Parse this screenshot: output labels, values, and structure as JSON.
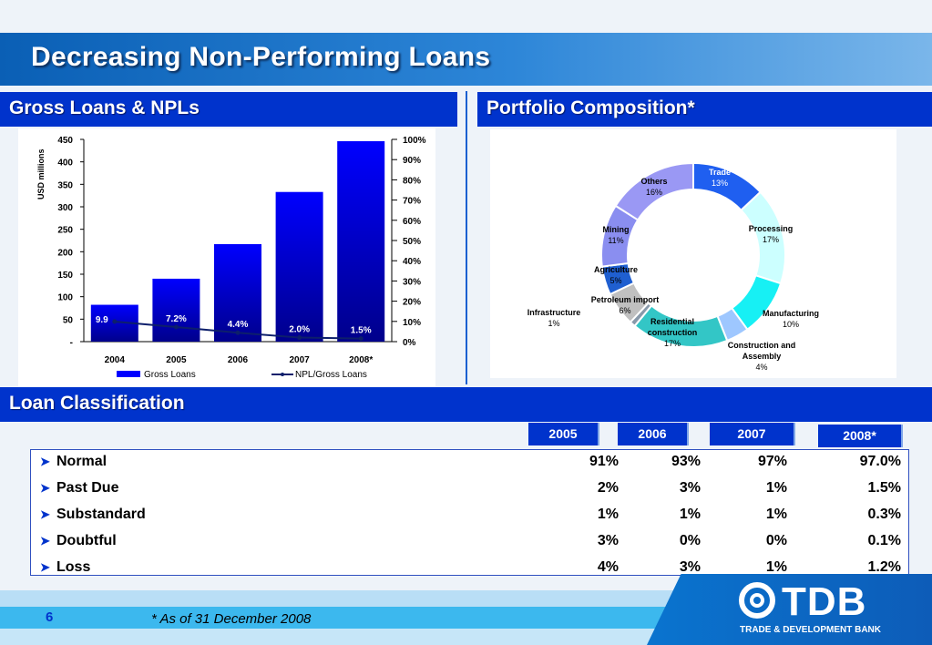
{
  "title": "Decreasing Non-Performing Loans",
  "sections": {
    "gross_loans": "Gross Loans & NPLs",
    "portfolio": "Portfolio Composition*",
    "loan_classification": "Loan Classification"
  },
  "chart_data": [
    {
      "type": "bar",
      "title": "Gross Loans & NPLs",
      "ylabel": "USD millions",
      "categories": [
        "2004",
        "2005",
        "2006",
        "2007",
        "2008*"
      ],
      "ylim": [
        0,
        450
      ],
      "y_ticks": [
        "-",
        "50",
        "100",
        "150",
        "200",
        "250",
        "300",
        "350",
        "400",
        "450"
      ],
      "y2lim": [
        0,
        100
      ],
      "y2_ticks": [
        "0%",
        "10%",
        "20%",
        "30%",
        "40%",
        "50%",
        "60%",
        "70%",
        "80%",
        "90%",
        "100%"
      ],
      "series": [
        {
          "name": "Gross Loans",
          "type": "bar",
          "axis": "left",
          "values": [
            82,
            140,
            217,
            333,
            446
          ]
        },
        {
          "name": "NPL/Gross Loans",
          "type": "line",
          "axis": "right",
          "values": [
            9.9,
            7.2,
            4.4,
            2.0,
            1.5
          ],
          "labels": [
            "9.9",
            "7.2%",
            "4.4%",
            "2.0%",
            "1.5%"
          ]
        }
      ],
      "legend": "bottom",
      "colors": {
        "bar_top": "#0000ff",
        "bar_bottom": "#00008b",
        "line": "#0d1f6b"
      }
    },
    {
      "type": "pie",
      "subtype": "donut",
      "title": "Portfolio Composition*",
      "slices": [
        {
          "label": "Trade",
          "value": 13,
          "value_label": "13%",
          "color": "#1f5ff0"
        },
        {
          "label": "Processing",
          "value": 17,
          "value_label": "17%",
          "color": "#ccffff"
        },
        {
          "label": "Manufacturing",
          "value": 10,
          "value_label": "10%",
          "color": "#17f0f4"
        },
        {
          "label": "Construction and Assembly",
          "value": 4,
          "value_label": "4%",
          "color": "#9ec7ff"
        },
        {
          "label": "Residential construction",
          "value": 17,
          "value_label": "17%",
          "color": "#33c6c6"
        },
        {
          "label": "Infrastructure",
          "value": 1,
          "value_label": "1%",
          "color": "#8899aa"
        },
        {
          "label": "Petroleum import",
          "value": 6,
          "value_label": "6%",
          "color": "#c0c0c0"
        },
        {
          "label": "Agriculture",
          "value": 5,
          "value_label": "5%",
          "color": "#1f5fd0"
        },
        {
          "label": "Mining",
          "value": 11,
          "value_label": "11%",
          "color": "#8a8ef0"
        },
        {
          "label": "Others",
          "value": 16,
          "value_label": "16%",
          "color": "#9a98f4"
        }
      ]
    },
    {
      "type": "table",
      "title": "Loan Classification",
      "columns": [
        "2005",
        "2006",
        "2007",
        "2008*"
      ],
      "rows": [
        {
          "label": "Normal",
          "values": [
            "91%",
            "93%",
            "97%",
            "97.0%"
          ]
        },
        {
          "label": "Past Due",
          "values": [
            "2%",
            "3%",
            "1%",
            "1.5%"
          ]
        },
        {
          "label": "Substandard",
          "values": [
            "1%",
            "1%",
            "1%",
            "0.3%"
          ]
        },
        {
          "label": "Doubtful",
          "values": [
            "3%",
            "0%",
            "0%",
            "0.1%"
          ]
        },
        {
          "label": "Loss",
          "values": [
            "4%",
            "3%",
            "1%",
            "1.2%"
          ]
        }
      ]
    }
  ],
  "footer": {
    "page_number": "6",
    "footnote": "*  As of 31 December 2008",
    "logo_text": "TDB",
    "logo_subtitle": "TRADE & DEVELOPMENT BANK"
  }
}
